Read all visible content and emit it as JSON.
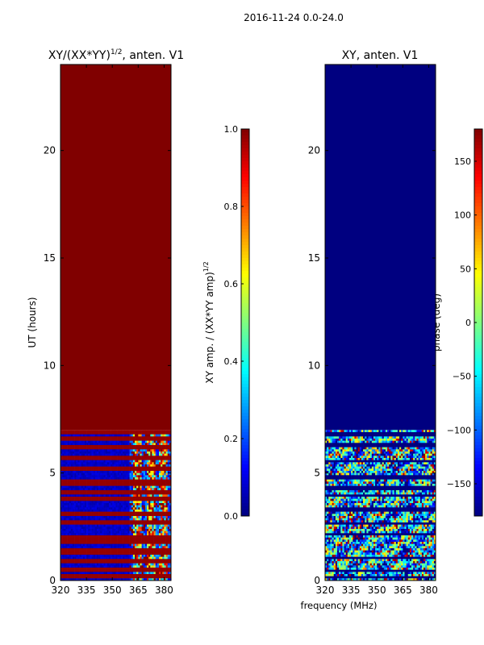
{
  "suptitle": "2016-11-24 0.0-24.0",
  "shared_xlabel": "frequency (MHz)",
  "chart_data": [
    {
      "type": "heatmap",
      "title": "XY/(XX*YY)",
      "title_sup": "1/2",
      "title_suffix": ", anten. V1",
      "xlabel": "",
      "ylabel": "UT (hours)",
      "xlim": [
        320,
        384
      ],
      "ylim": [
        0,
        24
      ],
      "xticks": [
        320,
        335,
        350,
        365,
        380
      ],
      "yticks": [
        0,
        5,
        10,
        15,
        20
      ],
      "colormap": "jet",
      "colorbar": {
        "label": "XY amp. / (XX*YY amp)",
        "label_sup": "1/2",
        "range": [
          0.0,
          1.0
        ],
        "ticks": [
          "0.0",
          "0.2",
          "0.4",
          "0.6",
          "0.8",
          "1.0"
        ]
      },
      "regions": [
        {
          "ut": [
            7.0,
            24.0
          ],
          "freq": [
            320,
            384
          ],
          "value": 1.0,
          "note": "saturated"
        },
        {
          "ut": [
            0.0,
            7.0
          ],
          "freq": [
            320,
            360
          ],
          "value": 0.05
        },
        {
          "ut": [
            0.0,
            7.0
          ],
          "freq": [
            360,
            384
          ],
          "value": "variable 0.1-0.9"
        }
      ],
      "highlight_bands_ut": [
        0.2,
        0.5,
        0.9,
        1.3,
        1.4,
        1.8,
        1.95,
        2.05,
        2.7,
        3.1,
        3.8,
        4.05,
        4.15,
        4.5,
        4.6,
        5.2,
        5.7,
        6.2,
        6.6,
        6.9
      ],
      "grid": false
    },
    {
      "type": "heatmap",
      "title": "XY, anten. V1",
      "xlabel": "frequency (MHz)",
      "ylabel": "",
      "xlim": [
        320,
        384
      ],
      "ylim": [
        0,
        24
      ],
      "xticks": [
        320,
        335,
        350,
        365,
        380
      ],
      "yticks": [
        0,
        5,
        10,
        15,
        20
      ],
      "colormap": "jet",
      "colorbar": {
        "label": "phase (deg)",
        "range": [
          -180,
          180
        ],
        "ticks": [
          "−150",
          "−100",
          "−50",
          "0",
          "50",
          "100",
          "150"
        ]
      },
      "regions": [
        {
          "ut": [
            7.0,
            24.0
          ],
          "freq": [
            320,
            384
          ],
          "value": -180,
          "note": "blank"
        },
        {
          "ut": [
            0.0,
            7.0
          ],
          "freq": [
            320,
            384
          ],
          "value": "variable -180-180"
        }
      ],
      "dark_bands_ut": [
        0.15,
        0.4,
        1.0,
        1.7,
        2.1,
        2.6,
        2.9,
        3.3,
        3.9,
        4.3,
        4.8,
        5.6,
        6.3,
        6.8
      ],
      "grid": false
    }
  ]
}
